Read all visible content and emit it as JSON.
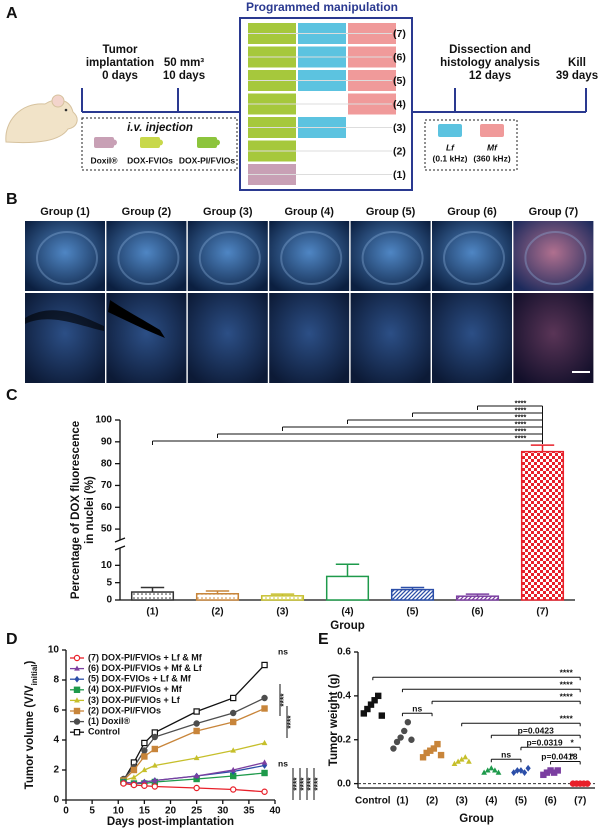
{
  "panel_a": {
    "label": "A",
    "timeline": [
      {
        "lines": [
          "Tumor",
          "implantation",
          "0 days"
        ]
      },
      {
        "lines": [
          "50 mm³",
          "10 days"
        ]
      },
      {
        "lines": [
          "Dissection and",
          "histology analysis",
          "12 days"
        ]
      },
      {
        "lines": [
          "Kill",
          "39 days"
        ]
      }
    ],
    "injection": {
      "title": "i.v. injection",
      "agents": [
        "Doxil®",
        "DOX-FVIOs",
        "DOX-PI/FVIOs"
      ]
    },
    "manipulation": {
      "title": "Programmed manipulation",
      "steps": [
        "(7)",
        "(6)",
        "(5)",
        "(4)",
        "(3)",
        "(2)",
        "(1)"
      ]
    },
    "fields": [
      {
        "name": "Lf",
        "freq": "(0.1 kHz)"
      },
      {
        "name": "Mf",
        "freq": "(360 kHz)"
      }
    ]
  },
  "panel_b": {
    "label": "B",
    "groups": [
      "Group (1)",
      "Group (2)",
      "Group (3)",
      "Group (4)",
      "Group (5)",
      "Group (6)",
      "Group (7)"
    ]
  },
  "chart_data": [
    {
      "panel_label": "C",
      "type": "bar",
      "ylabel": [
        "Percentage of DOX fluorescence",
        "in nuclei (%)"
      ],
      "xlabel": "Group",
      "categories": [
        "(1)",
        "(2)",
        "(3)",
        "(4)",
        "(5)",
        "(6)",
        "(7)"
      ],
      "values": [
        2.3,
        1.8,
        1.2,
        6.8,
        3.0,
        1.1,
        85.5
      ],
      "errors": [
        1.3,
        0.8,
        0.5,
        3.5,
        0.6,
        0.6,
        3.0
      ],
      "colors": [
        "#333333",
        "#c8853a",
        "#c6bf2b",
        "#1e9a4b",
        "#2b4ea8",
        "#7b3fa0",
        "#e8202a"
      ],
      "patterns": [
        "dots",
        "dots",
        "dots",
        "none",
        "hatch",
        "hatch",
        "checker"
      ],
      "ylim": [
        0,
        100
      ],
      "ybreak": [
        15,
        45
      ],
      "yticks": [
        0,
        5,
        10,
        50,
        60,
        70,
        80,
        90,
        100
      ],
      "significance": [
        "****",
        "****",
        "****",
        "****",
        "****",
        "****"
      ]
    },
    {
      "panel_label": "D",
      "type": "line",
      "xlabel": "Days post-implantation",
      "ylabel": [
        "Tumor volume (V/V",
        "initial",
        ")"
      ],
      "x": [
        11,
        13,
        15,
        17,
        25,
        32,
        38
      ],
      "xlim": [
        0,
        40
      ],
      "xticks": [
        0,
        5,
        10,
        15,
        20,
        25,
        30,
        35,
        40
      ],
      "ylim": [
        0,
        10
      ],
      "yticks": [
        0,
        2,
        4,
        6,
        8,
        10
      ],
      "series": [
        {
          "name": "(7) DOX-PI/FVIOs + Lf & Mf",
          "color": "#e8202a",
          "marker": "circle-open",
          "values": [
            1.1,
            1.0,
            0.95,
            0.9,
            0.8,
            0.7,
            0.55
          ]
        },
        {
          "name": "(6) DOX-PI/FVIOs + Mf & Lf",
          "color": "#7b3fa0",
          "marker": "triangle",
          "values": [
            1.2,
            1.1,
            1.2,
            1.3,
            1.6,
            2.0,
            2.5
          ]
        },
        {
          "name": "(5) DOX-FVIOs + Lf & Mf",
          "color": "#2b4ea8",
          "marker": "diamond",
          "values": [
            1.2,
            1.1,
            1.2,
            1.3,
            1.6,
            1.9,
            2.3
          ]
        },
        {
          "name": "(4) DOX-PI/FVIOs + Mf",
          "color": "#1e9a4b",
          "marker": "square",
          "values": [
            1.2,
            1.1,
            1.1,
            1.2,
            1.4,
            1.6,
            1.8
          ]
        },
        {
          "name": "(3) DOX-PI/FVIOs + Lf",
          "color": "#c6bf2b",
          "marker": "triangle",
          "values": [
            1.3,
            1.5,
            2.0,
            2.3,
            2.8,
            3.3,
            3.8
          ]
        },
        {
          "name": "(2) DOX-PI/FVIOs",
          "color": "#c8853a",
          "marker": "square",
          "values": [
            1.3,
            2.0,
            2.9,
            3.4,
            4.6,
            5.2,
            6.1
          ]
        },
        {
          "name": "(1) Doxil®",
          "color": "#4d4d4d",
          "marker": "circle",
          "values": [
            1.4,
            2.2,
            3.3,
            4.2,
            5.1,
            5.8,
            6.8
          ]
        },
        {
          "name": "Control",
          "color": "#111111",
          "marker": "square-open",
          "values": [
            1.3,
            2.5,
            3.8,
            4.5,
            5.9,
            6.8,
            9.0
          ]
        }
      ],
      "annotations": [
        "ns",
        "****",
        "****",
        "ns",
        "****",
        "****",
        "****",
        "****"
      ]
    },
    {
      "panel_label": "E",
      "type": "strip",
      "ylabel": "Tumor weight (g)",
      "xlabel": "Group",
      "categories": [
        "Control",
        "(1)",
        "(2)",
        "(3)",
        "(4)",
        "(5)",
        "(6)",
        "(7)"
      ],
      "colors": [
        "#111111",
        "#4d4d4d",
        "#c8853a",
        "#c6bf2b",
        "#1e9a4b",
        "#2b4ea8",
        "#7b3fa0",
        "#e8202a"
      ],
      "markers": [
        "square",
        "circle",
        "square",
        "triangle",
        "triangle",
        "diamond",
        "square",
        "circle"
      ],
      "values": [
        [
          0.32,
          0.34,
          0.36,
          0.38,
          0.4,
          0.31
        ],
        [
          0.16,
          0.19,
          0.21,
          0.24,
          0.28,
          0.2
        ],
        [
          0.12,
          0.14,
          0.15,
          0.16,
          0.18,
          0.13
        ],
        [
          0.09,
          0.1,
          0.11,
          0.12,
          0.1
        ],
        [
          0.05,
          0.06,
          0.07,
          0.06,
          0.05
        ],
        [
          0.05,
          0.06,
          0.06,
          0.05,
          0.07
        ],
        [
          0.04,
          0.05,
          0.06,
          0.05,
          0.06
        ],
        [
          0.0,
          0.0,
          0.0,
          0.0,
          0.0
        ]
      ],
      "ylim": [
        -0.02,
        0.6
      ],
      "yticks": [
        {
          "value": 0,
          "label": "0.0"
        },
        0.2,
        0.4,
        0.6
      ],
      "dashed_zero_line": true,
      "brackets": [
        {
          "from": 0,
          "to": 7,
          "label": "****"
        },
        {
          "from": 1,
          "to": 7,
          "label": "****"
        },
        {
          "from": 2,
          "to": 7,
          "label": "****"
        },
        {
          "from": 3,
          "to": 7,
          "label": "****"
        },
        {
          "from": 4,
          "to": 7,
          "label": "p=0.0423"
        },
        {
          "from": 5,
          "to": 7,
          "label": "p=0.0319",
          "mark": "*"
        },
        {
          "from": 6,
          "to": 7,
          "label": "p=0.0418",
          "mark": "*"
        },
        {
          "from": 1,
          "to": 2,
          "label": "ns"
        },
        {
          "from": 4,
          "to": 5,
          "label": "ns"
        }
      ]
    }
  ]
}
